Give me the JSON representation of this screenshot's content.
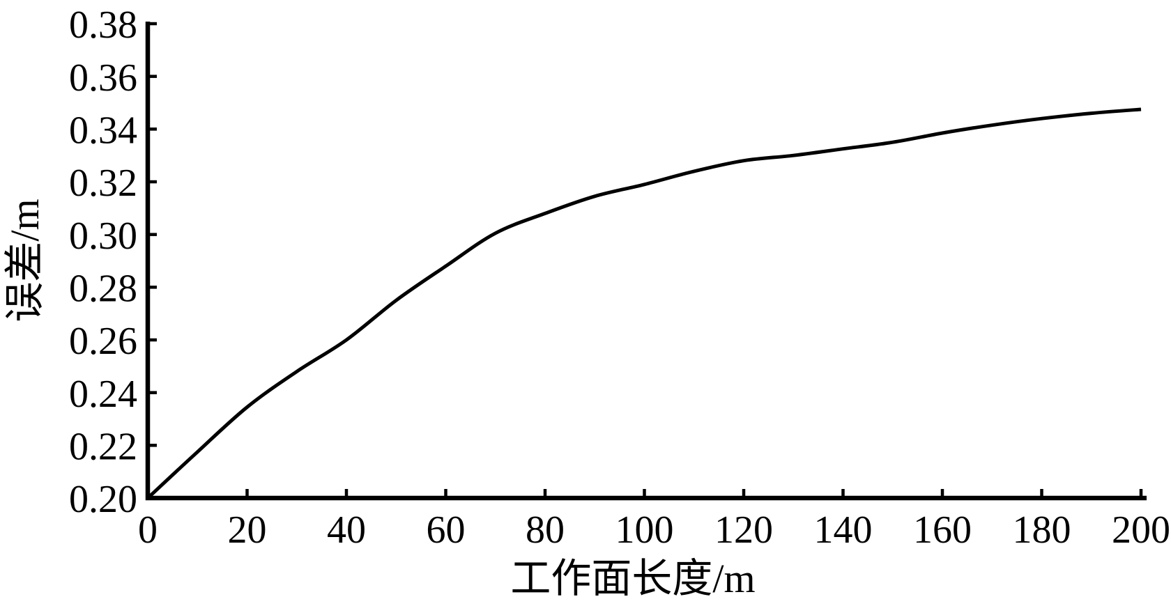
{
  "figure": {
    "background": "#ffffff",
    "foreground": "#000000"
  },
  "chart_data": {
    "type": "line",
    "title": "",
    "xlabel": "工作面长度/m",
    "ylabel": "误差/m",
    "xlim": [
      0,
      200
    ],
    "ylim": [
      0.2,
      0.38
    ],
    "xticks": [
      0,
      20,
      40,
      60,
      80,
      100,
      120,
      140,
      160,
      180,
      200
    ],
    "yticks": [
      0.2,
      0.22,
      0.24,
      0.26,
      0.28,
      0.3,
      0.32,
      0.34,
      0.36,
      0.38
    ],
    "ytick_decimals": 2,
    "grid": false,
    "legend": "none",
    "line_color": "#000000",
    "axis_color": "#000000",
    "series": [
      {
        "x": [
          0,
          10,
          20,
          30,
          40,
          50,
          60,
          70,
          80,
          90,
          100,
          110,
          120,
          130,
          140,
          150,
          160,
          170,
          180,
          190,
          200
        ],
        "y": [
          0.2,
          0.2175,
          0.2345,
          0.248,
          0.26,
          0.275,
          0.288,
          0.3005,
          0.308,
          0.3145,
          0.319,
          0.324,
          0.328,
          0.33,
          0.3325,
          0.335,
          0.3385,
          0.3415,
          0.344,
          0.346,
          0.3475
        ]
      }
    ]
  }
}
